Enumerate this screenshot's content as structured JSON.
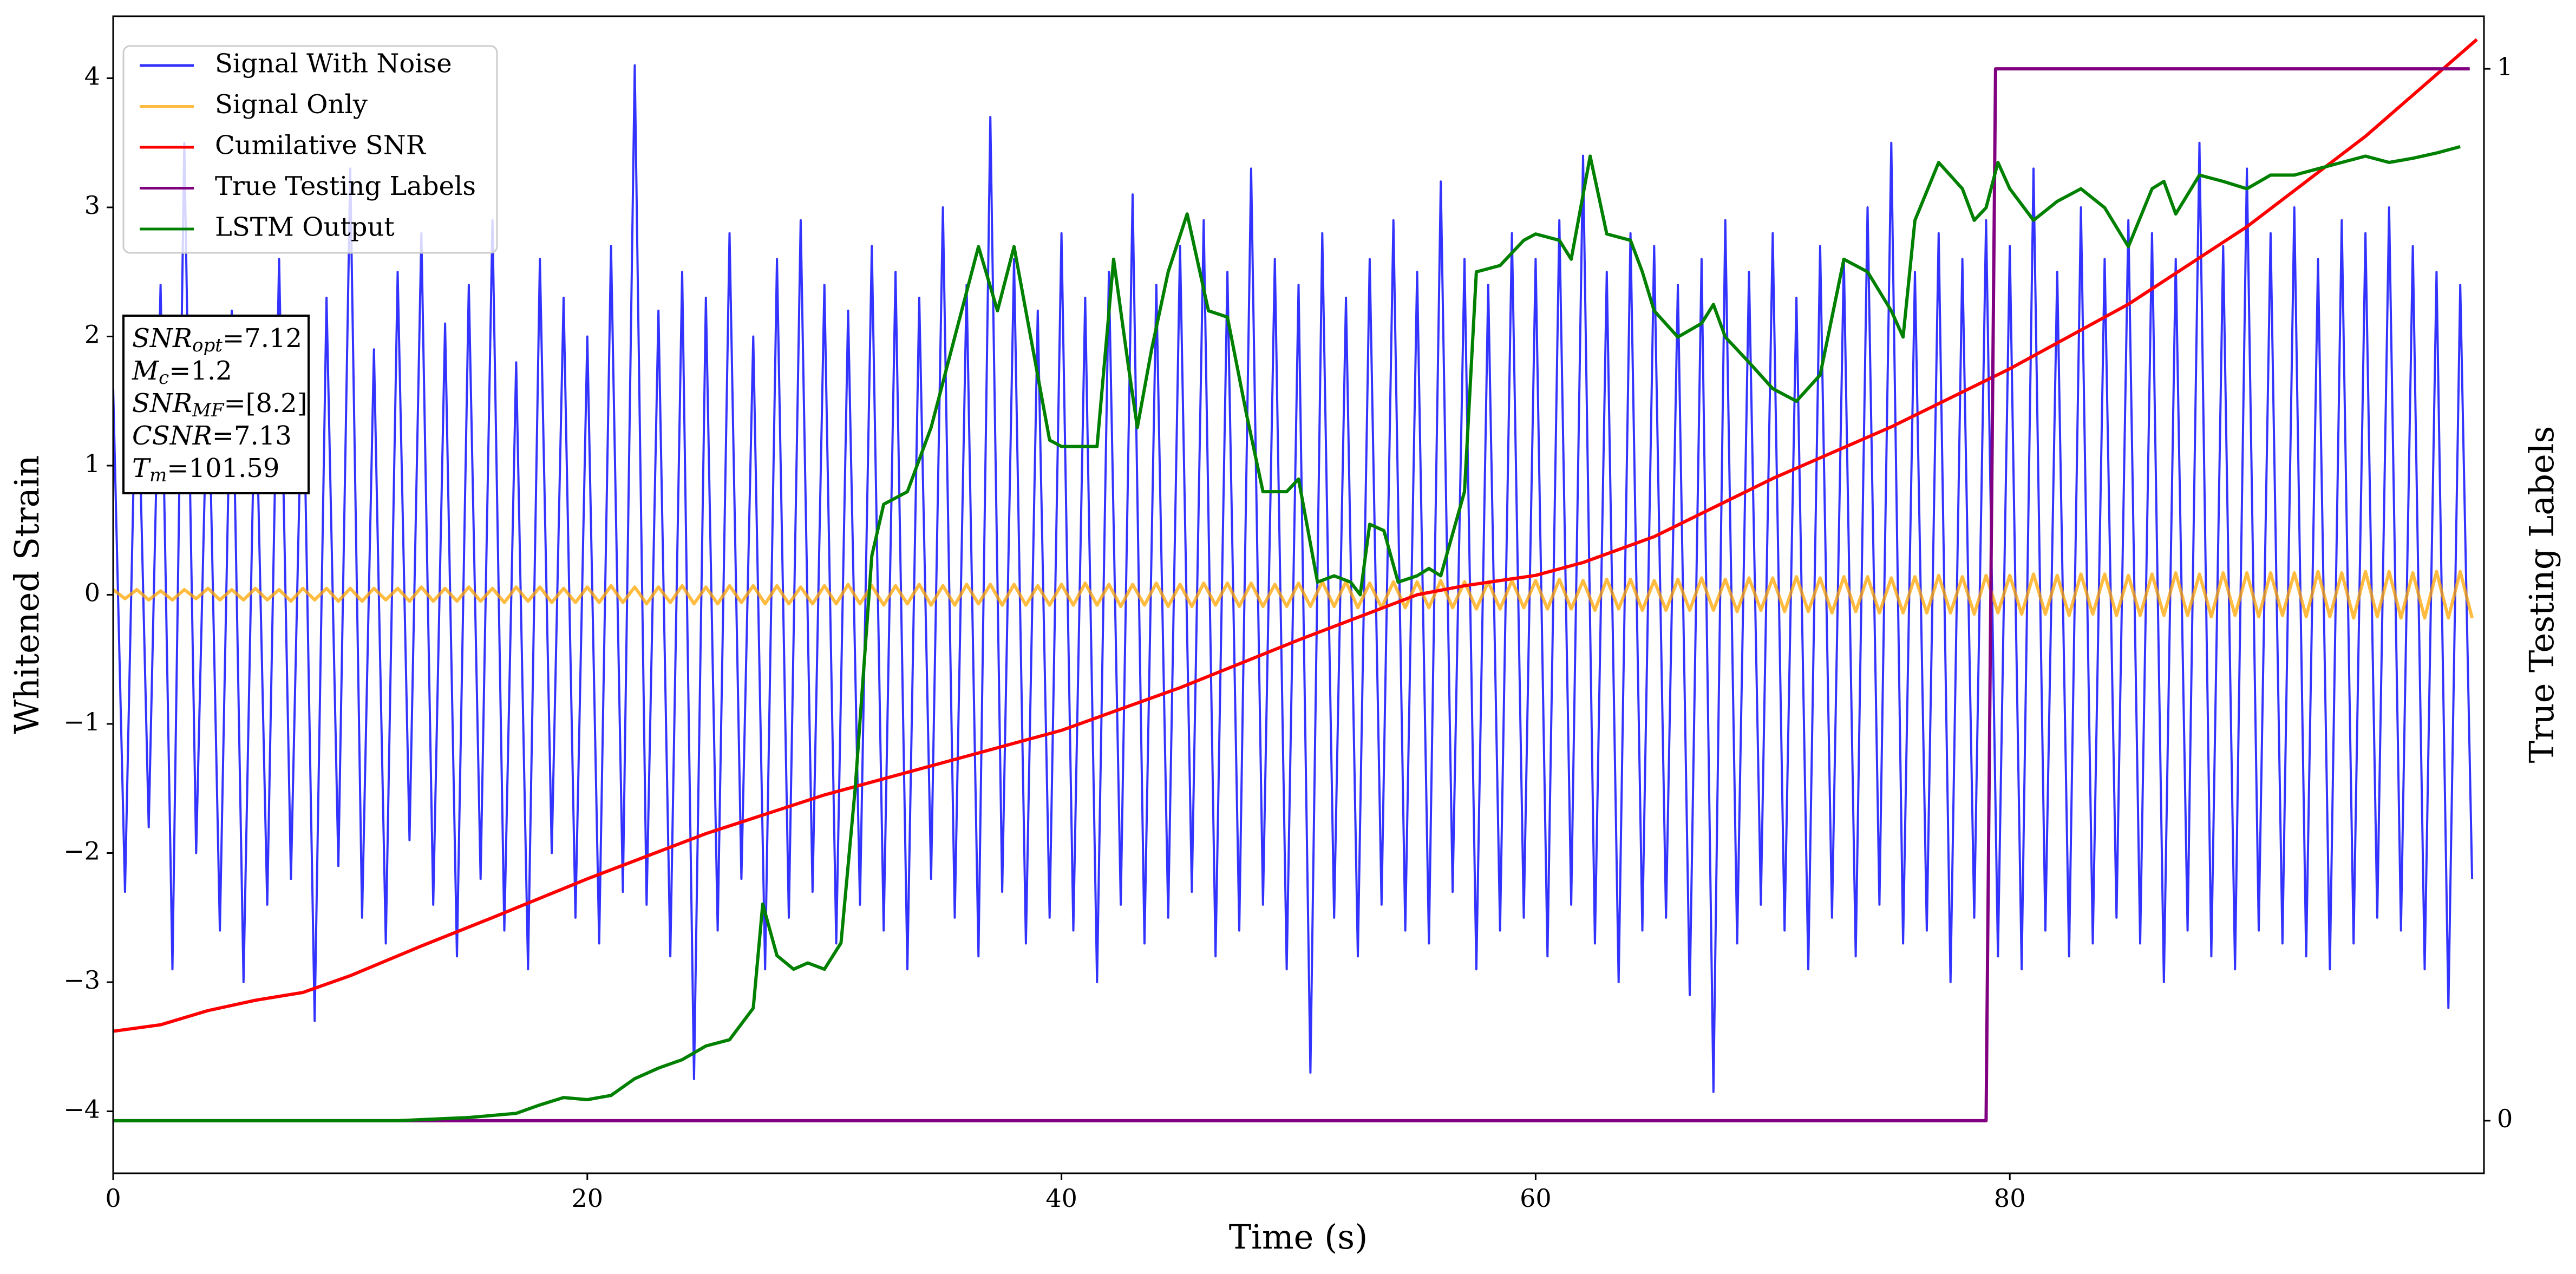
{
  "chart_data": {
    "type": "line",
    "xlabel": "Time (s)",
    "ylabel": "Whitened Strain",
    "y2label": "True Testing Labels",
    "xlim": [
      0,
      100
    ],
    "xticks": [
      0,
      20,
      40,
      60,
      80
    ],
    "ylim": [
      -4.48,
      4.48
    ],
    "yticks": [
      {
        "value": -4,
        "label": "−4"
      },
      {
        "value": -3,
        "label": "−3"
      },
      {
        "value": -2,
        "label": "−2"
      },
      {
        "value": -1,
        "label": "−1"
      },
      0,
      1,
      2,
      3,
      4
    ],
    "y2lim": [
      -0.05,
      1.05
    ],
    "y2ticks": [
      0,
      1
    ],
    "legend": "upper left",
    "annotation": [
      {
        "symbol": "SNR",
        "subscript": "opt",
        "text": "=7.12"
      },
      {
        "symbol": "M",
        "subscript": "c",
        "text": "=1.2"
      },
      {
        "symbol": "SNR",
        "subscript": "MF",
        "text": "=[8.2]"
      },
      {
        "symbol": "CSNR",
        "text": "=7.13"
      },
      {
        "symbol": "T",
        "subscript": "m",
        "text": "=101.59"
      }
    ],
    "x": [
      0,
      0.5,
      1,
      1.5,
      2,
      2.5,
      3,
      3.5,
      4,
      4.5,
      5,
      5.5,
      6,
      6.5,
      7,
      7.5,
      8,
      8.5,
      9,
      9.5,
      10,
      10.5,
      11,
      11.5,
      12,
      12.5,
      13,
      13.5,
      14,
      14.5,
      15,
      15.5,
      16,
      16.5,
      17,
      17.5,
      18,
      18.5,
      19,
      19.5,
      20,
      20.5,
      21,
      21.5,
      22,
      22.5,
      23,
      23.5,
      24,
      24.5,
      25,
      25.5,
      26,
      26.5,
      27,
      27.5,
      28,
      28.5,
      29,
      29.5,
      30,
      30.5,
      31,
      31.5,
      32,
      32.5,
      33,
      33.5,
      34,
      34.5,
      35,
      35.5,
      36,
      36.5,
      37,
      37.5,
      38,
      38.5,
      39,
      39.5,
      40,
      40.5,
      41,
      41.5,
      42,
      42.5,
      43,
      43.5,
      44,
      44.5,
      45,
      45.5,
      46,
      46.5,
      47,
      47.5,
      48,
      48.5,
      49,
      49.5,
      50,
      50.5,
      51,
      51.5,
      52,
      52.5,
      53,
      53.5,
      54,
      54.5,
      55,
      55.5,
      56,
      56.5,
      57,
      57.5,
      58,
      58.5,
      59,
      59.5,
      60,
      60.5,
      61,
      61.5,
      62,
      62.5,
      63,
      63.5,
      64,
      64.5,
      65,
      65.5,
      66,
      66.5,
      67,
      67.5,
      68,
      68.5,
      69,
      69.5,
      70,
      70.5,
      71,
      71.5,
      72,
      72.5,
      73,
      73.5,
      74,
      74.5,
      75,
      75.5,
      76,
      76.5,
      77,
      77.5,
      78,
      78.5,
      79,
      79.5,
      80,
      80.5,
      81,
      81.5,
      82,
      82.5,
      83,
      83.5,
      84,
      84.5,
      85,
      85.5,
      86,
      86.5,
      87,
      87.5,
      88,
      88.5,
      89,
      89.5,
      90,
      90.5,
      91,
      91.5,
      92,
      92.5,
      93,
      93.5,
      94,
      94.5,
      95,
      95.5,
      96,
      96.5,
      97,
      97.5,
      98,
      98.5,
      99,
      99.5
    ],
    "series": [
      {
        "name": "Signal With Noise",
        "color": "#0000ff",
        "values": [
          1.6,
          -2.3,
          2.1,
          -1.8,
          2.4,
          -2.9,
          3.5,
          -2.0,
          1.9,
          -2.6,
          2.2,
          -3.0,
          1.8,
          -2.4,
          2.6,
          -2.2,
          2.0,
          -3.3,
          2.3,
          -2.1,
          3.3,
          -2.5,
          1.9,
          -2.7,
          2.5,
          -1.9,
          2.8,
          -2.4,
          2.1,
          -2.8,
          2.4,
          -2.2,
          2.9,
          -2.6,
          1.8,
          -2.9,
          2.6,
          -2.0,
          2.3,
          -2.5,
          2.0,
          -2.7,
          2.7,
          -2.3,
          4.1,
          -2.4,
          2.2,
          -2.8,
          2.5,
          -3.75,
          2.3,
          -2.6,
          2.8,
          -2.2,
          2.0,
          -2.9,
          2.6,
          -2.5,
          2.9,
          -2.3,
          2.4,
          -2.7,
          2.2,
          -2.4,
          2.7,
          -2.6,
          2.5,
          -2.9,
          2.3,
          -2.2,
          3.0,
          -2.5,
          2.4,
          -2.8,
          3.7,
          -2.3,
          2.6,
          -2.7,
          2.2,
          -2.5,
          2.8,
          -2.6,
          2.3,
          -3.0,
          2.5,
          -2.4,
          3.1,
          -2.7,
          2.4,
          -2.5,
          2.7,
          -2.3,
          2.9,
          -2.8,
          2.5,
          -2.6,
          3.3,
          -2.4,
          2.6,
          -2.9,
          2.4,
          -3.7,
          2.8,
          -2.5,
          2.3,
          -2.8,
          2.6,
          -2.4,
          2.9,
          -2.6,
          2.5,
          -2.7,
          3.2,
          -2.3,
          2.6,
          -2.9,
          2.4,
          -2.6,
          2.8,
          -2.5,
          2.6,
          -2.8,
          2.9,
          -2.4,
          3.4,
          -2.7,
          2.5,
          -3.0,
          2.8,
          -2.6,
          2.7,
          -2.5,
          2.4,
          -3.1,
          2.6,
          -3.85,
          2.9,
          -2.7,
          2.5,
          -2.4,
          2.8,
          -2.6,
          2.3,
          -2.9,
          2.7,
          -2.5,
          2.6,
          -2.8,
          3.0,
          -2.4,
          3.5,
          -2.7,
          2.5,
          -2.6,
          2.8,
          -3.0,
          2.6,
          -2.5,
          2.9,
          -2.8,
          2.7,
          -2.9,
          3.3,
          -2.6,
          2.5,
          -2.8,
          3.0,
          -2.7,
          2.6,
          -2.5,
          2.9,
          -2.7,
          2.8,
          -3.0,
          2.6,
          -2.6,
          3.5,
          -2.8,
          2.7,
          -2.9,
          3.3,
          -2.6,
          2.8,
          -2.7,
          3.0,
          -2.8,
          2.6,
          -2.9,
          2.9,
          -2.7,
          2.8,
          -2.5,
          3.0,
          -2.6,
          2.7,
          -2.9,
          2.5,
          -3.2,
          2.4,
          -2.2
        ]
      },
      {
        "name": "Signal Only",
        "color": "#ffa500",
        "values": [
          0.04,
          -0.03,
          0.04,
          -0.04,
          0.03,
          -0.04,
          0.04,
          -0.03,
          0.05,
          -0.04,
          0.04,
          -0.04,
          0.05,
          -0.04,
          0.04,
          -0.05,
          0.05,
          -0.04,
          0.05,
          -0.05,
          0.05,
          -0.05,
          0.05,
          -0.04,
          0.05,
          -0.05,
          0.06,
          -0.05,
          0.05,
          -0.05,
          0.06,
          -0.05,
          0.05,
          -0.06,
          0.06,
          -0.05,
          0.06,
          -0.06,
          0.05,
          -0.06,
          0.06,
          -0.06,
          0.07,
          -0.06,
          0.06,
          -0.07,
          0.06,
          -0.06,
          0.07,
          -0.07,
          0.06,
          -0.07,
          0.07,
          -0.06,
          0.07,
          -0.07,
          0.07,
          -0.07,
          0.06,
          -0.07,
          0.07,
          -0.07,
          0.08,
          -0.07,
          0.07,
          -0.08,
          0.07,
          -0.07,
          0.08,
          -0.08,
          0.07,
          -0.08,
          0.08,
          -0.07,
          0.08,
          -0.08,
          0.08,
          -0.08,
          0.07,
          -0.08,
          0.08,
          -0.08,
          0.09,
          -0.08,
          0.08,
          -0.09,
          0.08,
          -0.08,
          0.09,
          -0.09,
          0.08,
          -0.09,
          0.09,
          -0.08,
          0.09,
          -0.09,
          0.09,
          -0.09,
          0.08,
          -0.09,
          0.09,
          -0.09,
          0.1,
          -0.09,
          0.1,
          -0.1,
          0.09,
          -0.1,
          0.1,
          -0.1,
          0.1,
          -0.1,
          0.11,
          -0.1,
          0.1,
          -0.11,
          0.1,
          -0.11,
          0.11,
          -0.1,
          0.11,
          -0.11,
          0.12,
          -0.11,
          0.11,
          -0.12,
          0.12,
          -0.11,
          0.12,
          -0.12,
          0.11,
          -0.12,
          0.12,
          -0.12,
          0.13,
          -0.12,
          0.12,
          -0.13,
          0.13,
          -0.12,
          0.13,
          -0.13,
          0.14,
          -0.13,
          0.13,
          -0.14,
          0.14,
          -0.13,
          0.14,
          -0.14,
          0.13,
          -0.14,
          0.14,
          -0.14,
          0.15,
          -0.14,
          0.14,
          -0.15,
          0.15,
          -0.14,
          0.15,
          -0.15,
          0.16,
          -0.15,
          0.15,
          -0.16,
          0.16,
          -0.15,
          0.16,
          -0.16,
          0.15,
          -0.16,
          0.16,
          -0.16,
          0.17,
          -0.16,
          0.16,
          -0.17,
          0.17,
          -0.16,
          0.17,
          -0.17,
          0.17,
          -0.16,
          0.17,
          -0.17,
          0.18,
          -0.17,
          0.17,
          -0.18,
          0.18,
          -0.17,
          0.18,
          -0.18,
          0.17,
          -0.18,
          0.18,
          -0.18,
          0.18,
          -0.18
        ]
      },
      {
        "name": "Cumilative SNR",
        "color": "#ff0000",
        "x": [
          0,
          2,
          4,
          6,
          8,
          10,
          13,
          16,
          20,
          25,
          30,
          35,
          40,
          45,
          50,
          55,
          57,
          60,
          62,
          65,
          70,
          75,
          80,
          85,
          90,
          95,
          99.7
        ],
        "values": [
          -3.38,
          -3.33,
          -3.22,
          -3.14,
          -3.08,
          -2.95,
          -2.72,
          -2.5,
          -2.2,
          -1.85,
          -1.55,
          -1.3,
          -1.05,
          -0.72,
          -0.35,
          0.0,
          0.07,
          0.15,
          0.25,
          0.45,
          0.9,
          1.3,
          1.75,
          2.25,
          2.85,
          3.55,
          4.3
        ]
      },
      {
        "name": "True Testing Labels",
        "color": "#800080",
        "axis": "y2",
        "x": [
          0,
          79,
          79.4,
          99.4
        ],
        "values": [
          0,
          0,
          1,
          1
        ]
      },
      {
        "name": "LSTM Output",
        "color": "#008000",
        "axis": "y2",
        "x": [
          0,
          12,
          15,
          17,
          18,
          19,
          20,
          21,
          22,
          23,
          24,
          25,
          26,
          27,
          27.4,
          28,
          28.7,
          29.3,
          30,
          30.7,
          31.3,
          32,
          32.5,
          33.5,
          34.5,
          35.5,
          36.5,
          37.3,
          38,
          38.7,
          39.5,
          40,
          41.5,
          42.2,
          42.8,
          43.2,
          43.8,
          44.5,
          45.3,
          46.2,
          47,
          47.8,
          48.5,
          49.5,
          50,
          50.8,
          51.5,
          52.2,
          52.6,
          53,
          53.6,
          54.2,
          55,
          55.5,
          56,
          57,
          57.5,
          58.5,
          59.5,
          60,
          61,
          61.5,
          62.3,
          63,
          64,
          64.5,
          65,
          66,
          67,
          67.5,
          68,
          69,
          70,
          71,
          72,
          73,
          74,
          75,
          75.5,
          76,
          77,
          78,
          78.5,
          79,
          79.5,
          80,
          81,
          82,
          83,
          84,
          85,
          86,
          86.5,
          87,
          88,
          89,
          90,
          91,
          92,
          93,
          94,
          95,
          96,
          97,
          98,
          99
        ],
        "values": [
          0,
          0,
          0.003,
          0.007,
          0.015,
          0.022,
          0.02,
          0.024,
          0.04,
          0.05,
          0.058,
          0.071,
          0.077,
          0.107,
          0.206,
          0.157,
          0.144,
          0.15,
          0.144,
          0.169,
          0.316,
          0.537,
          0.586,
          0.598,
          0.659,
          0.745,
          0.831,
          0.77,
          0.831,
          0.745,
          0.647,
          0.641,
          0.641,
          0.819,
          0.721,
          0.659,
          0.733,
          0.807,
          0.862,
          0.77,
          0.764,
          0.672,
          0.598,
          0.598,
          0.61,
          0.512,
          0.518,
          0.512,
          0.5,
          0.567,
          0.561,
          0.512,
          0.518,
          0.525,
          0.518,
          0.598,
          0.807,
          0.813,
          0.837,
          0.843,
          0.837,
          0.819,
          0.917,
          0.843,
          0.837,
          0.807,
          0.77,
          0.745,
          0.758,
          0.776,
          0.745,
          0.721,
          0.696,
          0.684,
          0.709,
          0.819,
          0.807,
          0.77,
          0.745,
          0.856,
          0.911,
          0.886,
          0.856,
          0.868,
          0.911,
          0.886,
          0.856,
          0.874,
          0.886,
          0.868,
          0.831,
          0.886,
          0.893,
          0.862,
          0.899,
          0.893,
          0.886,
          0.899,
          0.899,
          0.905,
          0.911,
          0.917,
          0.911,
          0.915,
          0.92,
          0.926
        ]
      }
    ]
  }
}
